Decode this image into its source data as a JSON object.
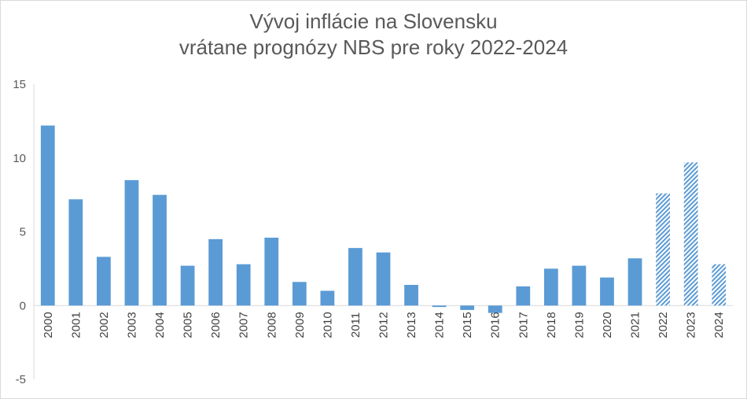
{
  "chart_data": {
    "type": "bar",
    "title_lines": [
      "Vývoj inflácie na Slovensku",
      "vrátane prognózy NBS pre roky 2022-2024"
    ],
    "categories": [
      "2000",
      "2001",
      "2002",
      "2003",
      "2004",
      "2005",
      "2006",
      "2007",
      "2008",
      "2009",
      "2010",
      "2011",
      "2012",
      "2013",
      "2014",
      "2015",
      "2016",
      "2017",
      "2018",
      "2019",
      "2020",
      "2021",
      "2022",
      "2023",
      "2024"
    ],
    "values": [
      12.2,
      7.2,
      3.3,
      8.5,
      7.5,
      2.7,
      4.5,
      2.8,
      4.6,
      1.6,
      1.0,
      3.9,
      3.6,
      1.4,
      -0.1,
      -0.3,
      -0.5,
      1.3,
      2.5,
      2.7,
      1.9,
      3.2,
      7.6,
      9.7,
      2.8
    ],
    "forecast_categories": [
      "2022",
      "2023",
      "2024"
    ],
    "ylim": [
      -5,
      15
    ],
    "yticks": [
      -5,
      0,
      5,
      10,
      15
    ],
    "grid": false,
    "colors": {
      "bar": "#5b9bd5",
      "axis": "#d9d9d9",
      "text": "#595959"
    }
  }
}
